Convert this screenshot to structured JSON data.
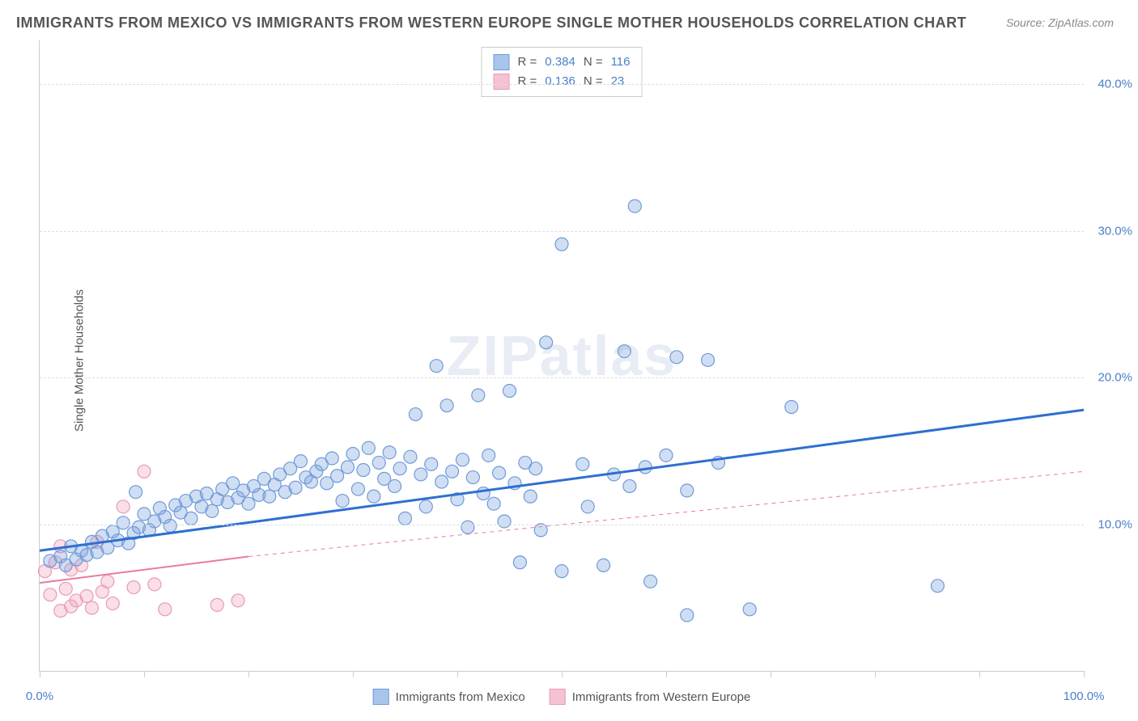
{
  "title": "IMMIGRANTS FROM MEXICO VS IMMIGRANTS FROM WESTERN EUROPE SINGLE MOTHER HOUSEHOLDS CORRELATION CHART",
  "source": "Source: ZipAtlas.com",
  "ylabel": "Single Mother Households",
  "watermark": "ZIPatlas",
  "chart": {
    "type": "scatter",
    "xlim": [
      0,
      100
    ],
    "ylim": [
      0,
      43
    ],
    "xtick_positions": [
      0,
      10,
      20,
      30,
      40,
      50,
      60,
      70,
      80,
      90,
      100
    ],
    "xtick_labels": {
      "0": "0.0%",
      "100": "100.0%"
    },
    "ytick_positions": [
      10,
      20,
      30,
      40
    ],
    "ytick_labels": [
      "10.0%",
      "20.0%",
      "30.0%",
      "40.0%"
    ],
    "grid_color": "#dddddd",
    "background_color": "#ffffff",
    "marker_radius": 8,
    "marker_stroke_width": 1.2,
    "trend_solid_width": 3,
    "trend_dash_width": 1,
    "trend_dash_pattern": "5,5"
  },
  "series_a": {
    "label": "Immigrants from Mexico",
    "fill": "rgba(120,160,220,0.35)",
    "stroke": "#6f9bd8",
    "swatch_fill": "#a9c5ec",
    "swatch_border": "#6f9bd8",
    "trend_color": "#2e6fd0",
    "R": "0.384",
    "N": "116",
    "trend": {
      "x1": 0,
      "y1": 8.2,
      "x2": 100,
      "y2": 17.8
    },
    "points": [
      [
        1,
        7.5
      ],
      [
        2,
        7.8
      ],
      [
        2.5,
        7.2
      ],
      [
        3,
        8.5
      ],
      [
        3.5,
        7.6
      ],
      [
        4,
        8.2
      ],
      [
        4.5,
        7.9
      ],
      [
        5,
        8.8
      ],
      [
        5.5,
        8.1
      ],
      [
        6,
        9.2
      ],
      [
        6.5,
        8.4
      ],
      [
        7,
        9.5
      ],
      [
        7.5,
        8.9
      ],
      [
        8,
        10.1
      ],
      [
        8.5,
        8.7
      ],
      [
        9,
        9.4
      ],
      [
        9.2,
        12.2
      ],
      [
        9.5,
        9.8
      ],
      [
        10,
        10.7
      ],
      [
        10.5,
        9.6
      ],
      [
        11,
        10.2
      ],
      [
        11.5,
        11.1
      ],
      [
        12,
        10.5
      ],
      [
        12.5,
        9.9
      ],
      [
        13,
        11.3
      ],
      [
        13.5,
        10.8
      ],
      [
        14,
        11.6
      ],
      [
        14.5,
        10.4
      ],
      [
        15,
        11.9
      ],
      [
        15.5,
        11.2
      ],
      [
        16,
        12.1
      ],
      [
        16.5,
        10.9
      ],
      [
        17,
        11.7
      ],
      [
        17.5,
        12.4
      ],
      [
        18,
        11.5
      ],
      [
        18.5,
        12.8
      ],
      [
        19,
        11.8
      ],
      [
        19.5,
        12.3
      ],
      [
        20,
        11.4
      ],
      [
        20.5,
        12.6
      ],
      [
        21,
        12.0
      ],
      [
        21.5,
        13.1
      ],
      [
        22,
        11.9
      ],
      [
        22.5,
        12.7
      ],
      [
        23,
        13.4
      ],
      [
        23.5,
        12.2
      ],
      [
        24,
        13.8
      ],
      [
        24.5,
        12.5
      ],
      [
        25,
        14.3
      ],
      [
        25.5,
        13.2
      ],
      [
        26,
        12.9
      ],
      [
        26.5,
        13.6
      ],
      [
        27,
        14.1
      ],
      [
        27.5,
        12.8
      ],
      [
        28,
        14.5
      ],
      [
        28.5,
        13.3
      ],
      [
        29,
        11.6
      ],
      [
        29.5,
        13.9
      ],
      [
        30,
        14.8
      ],
      [
        30.5,
        12.4
      ],
      [
        31,
        13.7
      ],
      [
        31.5,
        15.2
      ],
      [
        32,
        11.9
      ],
      [
        32.5,
        14.2
      ],
      [
        33,
        13.1
      ],
      [
        33.5,
        14.9
      ],
      [
        34,
        12.6
      ],
      [
        34.5,
        13.8
      ],
      [
        35,
        10.4
      ],
      [
        35.5,
        14.6
      ],
      [
        36,
        17.5
      ],
      [
        36.5,
        13.4
      ],
      [
        37,
        11.2
      ],
      [
        37.5,
        14.1
      ],
      [
        38,
        20.8
      ],
      [
        38.5,
        12.9
      ],
      [
        39,
        18.1
      ],
      [
        39.5,
        13.6
      ],
      [
        40,
        11.7
      ],
      [
        40.5,
        14.4
      ],
      [
        41,
        9.8
      ],
      [
        41.5,
        13.2
      ],
      [
        42,
        18.8
      ],
      [
        42.5,
        12.1
      ],
      [
        43,
        14.7
      ],
      [
        43.5,
        11.4
      ],
      [
        44,
        13.5
      ],
      [
        44.5,
        10.2
      ],
      [
        45,
        19.1
      ],
      [
        45.5,
        12.8
      ],
      [
        46,
        7.4
      ],
      [
        46.5,
        14.2
      ],
      [
        47,
        11.9
      ],
      [
        47.5,
        13.8
      ],
      [
        48,
        9.6
      ],
      [
        48.5,
        22.4
      ],
      [
        50,
        29.1
      ],
      [
        50,
        6.8
      ],
      [
        52,
        14.1
      ],
      [
        52.5,
        11.2
      ],
      [
        54,
        7.2
      ],
      [
        55,
        13.4
      ],
      [
        56,
        21.8
      ],
      [
        56.5,
        12.6
      ],
      [
        57,
        31.7
      ],
      [
        58,
        13.9
      ],
      [
        58.5,
        6.1
      ],
      [
        60,
        14.7
      ],
      [
        61,
        21.4
      ],
      [
        62,
        12.3
      ],
      [
        62,
        3.8
      ],
      [
        64,
        21.2
      ],
      [
        65,
        14.2
      ],
      [
        68,
        4.2
      ],
      [
        72,
        18.0
      ],
      [
        86,
        5.8
      ]
    ]
  },
  "series_b": {
    "label": "Immigrants from Western Europe",
    "fill": "rgba(240,160,190,0.35)",
    "stroke": "#e89ab5",
    "swatch_fill": "#f5c2d4",
    "swatch_border": "#e89ab5",
    "trend_color": "#e87ba3",
    "R": "0.136",
    "N": "23",
    "trend_solid": {
      "x1": 0,
      "y1": 6.0,
      "x2": 20,
      "y2": 7.8
    },
    "trend_dash": {
      "x1": 20,
      "y1": 7.8,
      "x2": 100,
      "y2": 13.6
    },
    "points": [
      [
        0.5,
        6.8
      ],
      [
        1,
        5.2
      ],
      [
        1.5,
        7.4
      ],
      [
        2,
        4.1
      ],
      [
        2,
        8.5
      ],
      [
        2.5,
        5.6
      ],
      [
        3,
        4.4
      ],
      [
        3,
        6.9
      ],
      [
        3.5,
        4.8
      ],
      [
        4,
        7.2
      ],
      [
        4.5,
        5.1
      ],
      [
        5,
        4.3
      ],
      [
        5.5,
        8.8
      ],
      [
        6,
        5.4
      ],
      [
        6.5,
        6.1
      ],
      [
        7,
        4.6
      ],
      [
        8,
        11.2
      ],
      [
        9,
        5.7
      ],
      [
        10,
        13.6
      ],
      [
        11,
        5.9
      ],
      [
        12,
        4.2
      ],
      [
        17,
        4.5
      ],
      [
        19,
        4.8
      ]
    ]
  },
  "legend_top": {
    "r_label": "R =",
    "n_label": "N ="
  }
}
